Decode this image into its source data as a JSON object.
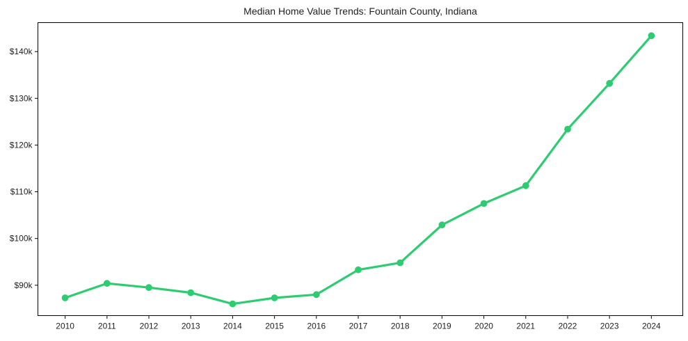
{
  "chart_data": {
    "type": "line",
    "title": "Median Home Value Trends: Fountain County, Indiana",
    "categories": [
      "2010",
      "2011",
      "2012",
      "2013",
      "2014",
      "2015",
      "2016",
      "2017",
      "2018",
      "2019",
      "2020",
      "2021",
      "2022",
      "2023",
      "2024"
    ],
    "values": [
      87300,
      90400,
      89500,
      88400,
      86000,
      87300,
      88000,
      93300,
      94800,
      102900,
      107500,
      111300,
      123400,
      133200,
      143400
    ],
    "xlabel": "",
    "ylabel": "",
    "y_ticks": [
      {
        "value": 90000,
        "label": "$90k"
      },
      {
        "value": 100000,
        "label": "$100k"
      },
      {
        "value": 110000,
        "label": "$110k"
      },
      {
        "value": 120000,
        "label": "$120k"
      },
      {
        "value": 130000,
        "label": "$130k"
      },
      {
        "value": 140000,
        "label": "$140k"
      }
    ],
    "xlim": [
      2009.35,
      2024.75
    ],
    "ylim": [
      83500,
      146200
    ],
    "grid": false,
    "legend": "none",
    "line_color": "#2ecc71",
    "marker_color": "#2ecc71",
    "axis_color": "#000000",
    "text_color": "#1f1f1f"
  }
}
